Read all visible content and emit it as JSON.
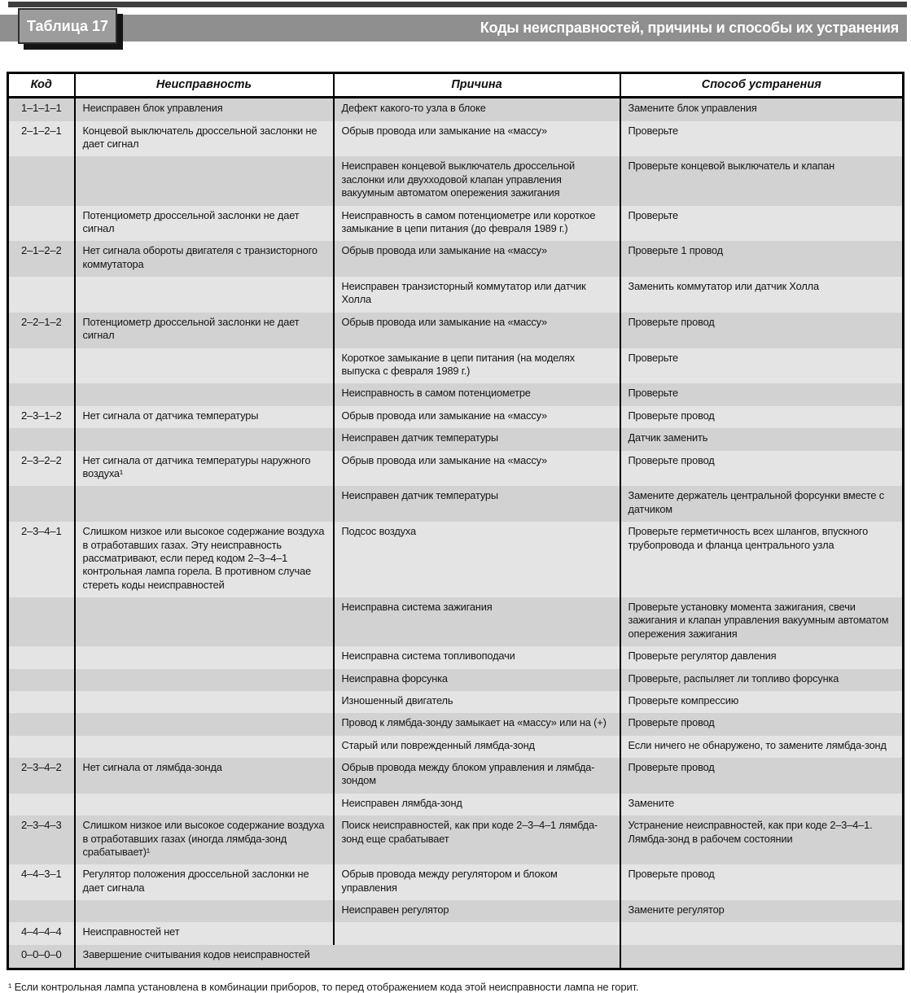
{
  "header": {
    "table_label": "Таблица 17",
    "title": "Коды неисправностей, причины и способы их устранения"
  },
  "table": {
    "columns": [
      "Код",
      "Неисправность",
      "Причина",
      "Способ устранения"
    ],
    "rows": [
      {
        "code": "1–1–1–1",
        "fault": "Неисправен блок управления",
        "cause": "Дефект какого-то узла в блоке",
        "remedy": "Замените блок управления"
      },
      {
        "code": "2–1–2–1",
        "fault": "Концевой выключатель дроссельной заслонки не дает сигнал",
        "cause": "Обрыв провода или замыкание на «массу»",
        "remedy": "Проверьте"
      },
      {
        "code": "",
        "fault": "",
        "cause": "Неисправен концевой выключатель дроссельной заслонки или двухходовой клапан управления вакуумным автоматом опережения зажигания",
        "remedy": "Проверьте концевой выключатель и клапан"
      },
      {
        "code": "",
        "fault": "Потенциометр дроссельной заслонки не дает сигнал",
        "cause": "Неисправность в самом потенциометре или короткое замыкание в цепи питания (до февраля 1989 г.)",
        "remedy": "Проверьте"
      },
      {
        "code": "2–1–2–2",
        "fault": "Нет сигнала обороты двигателя с транзисторного коммутатора",
        "cause": "Обрыв провода или замыкание на «массу»",
        "remedy": "Проверьте 1 провод"
      },
      {
        "code": "",
        "fault": "",
        "cause": "Неисправен транзисторный коммутатор или датчик Холла",
        "remedy": "Заменить коммутатор или датчик Холла"
      },
      {
        "code": "2–2–1–2",
        "fault": "Потенциометр дроссельной заслонки не дает сигнал",
        "cause": "Обрыв провода или замыкание на «массу»",
        "remedy": "Проверьте провод"
      },
      {
        "code": "",
        "fault": "",
        "cause": "Короткое замыкание в цепи питания (на моделях выпуска с февраля 1989 г.)",
        "remedy": "Проверьте"
      },
      {
        "code": "",
        "fault": "",
        "cause": "Неисправность в самом потенциометре",
        "remedy": "Проверьте"
      },
      {
        "code": "2–3–1–2",
        "fault": "Нет сигнала от датчика температуры",
        "cause": "Обрыв провода или замыкание на «массу»",
        "remedy": "Проверьте провод"
      },
      {
        "code": "",
        "fault": "",
        "cause": "Неисправен датчик температуры",
        "remedy": "Датчик заменить"
      },
      {
        "code": "2–3–2–2",
        "fault": "Нет сигнала от датчика температуры наружного воздуха¹",
        "cause": "Обрыв провода или замыкание на «массу»",
        "remedy": "Проверьте провод"
      },
      {
        "code": "",
        "fault": "",
        "cause": "Неисправен датчик температуры",
        "remedy": "Замените держатель центральной форсунки вместе с датчиком"
      },
      {
        "code": "2–3–4–1",
        "fault": "Слишком низкое или высокое содержание воздуха в отработавших газах. Эту неисправность рассматривают, если перед кодом 2–3–4–1 контрольная лампа горела. В противном случае стереть коды неисправностей",
        "cause": "Подсос воздуха",
        "remedy": "Проверьте герметичность всех шлангов, впускного трубопровода и фланца центрального узла"
      },
      {
        "code": "",
        "fault": "",
        "cause": "Неисправна система зажигания",
        "remedy": "Проверьте установку момента зажигания, свечи зажигания и клапан управления вакуумным автоматом опережения зажигания"
      },
      {
        "code": "",
        "fault": "",
        "cause": "Неисправна система топливоподачи",
        "remedy": "Проверьте регулятор давления"
      },
      {
        "code": "",
        "fault": "",
        "cause": "Неисправна форсунка",
        "remedy": "Проверьте, распыляет ли топливо форсунка"
      },
      {
        "code": "",
        "fault": "",
        "cause": "Изношенный двигатель",
        "remedy": "Проверьте компрессию"
      },
      {
        "code": "",
        "fault": "",
        "cause": "Провод к лямбда-зонду замыкает на «массу» или на (+)",
        "remedy": "Проверьте провод"
      },
      {
        "code": "",
        "fault": "",
        "cause": "Старый или поврежденный лямбда-зонд",
        "remedy": "Если ничего не обнаружено, то замените лямбда-зонд"
      },
      {
        "code": "2–3–4–2",
        "fault": "Нет сигнала от лямбда-зонда",
        "cause": "Обрыв провода между блоком управления и лямбда-зондом",
        "remedy": "Проверьте провод"
      },
      {
        "code": "",
        "fault": "",
        "cause": "Неисправен лямбда-зонд",
        "remedy": "Замените"
      },
      {
        "code": "2–3–4–3",
        "fault": "Слишком низкое или высокое содержание воздуха в отработавших газах (иногда лямбда-зонд срабатывает)¹",
        "cause": "Поиск неисправностей, как при коде 2–3–4–1 лямбда-зонд еще срабатывает",
        "remedy": "Устранение неисправностей, как при коде 2–3–4–1. Лямбда-зонд в рабочем состоянии"
      },
      {
        "code": "4–4–3–1",
        "fault": "Регулятор положения дроссельной заслонки не дает сигнала",
        "cause": "Обрыв провода между регулятором и блоком управления",
        "remedy": "Проверьте провод"
      },
      {
        "code": "",
        "fault": "",
        "cause": "Неисправен регулятор",
        "remedy": "Замените регулятор"
      },
      {
        "code": "4–4–4–4",
        "fault": "Неисправностей нет",
        "cause": "",
        "remedy": ""
      },
      {
        "code": "0–0–0–0",
        "fault": "Завершение считывания кодов неисправностей",
        "cause": "",
        "remedy": "",
        "span_fault_cause": true
      }
    ]
  },
  "footnote": "¹ Если контрольная лампа установлена в комбинации приборов, то перед отображением кода этой неисправности лампа не горит.",
  "colors": {
    "band_dark": "#d2d2d2",
    "band_light": "#e4e4e4",
    "title_band": "#8f8f8f",
    "label_box": "#9c9c9c",
    "top_rule": "#3e3e3e"
  }
}
